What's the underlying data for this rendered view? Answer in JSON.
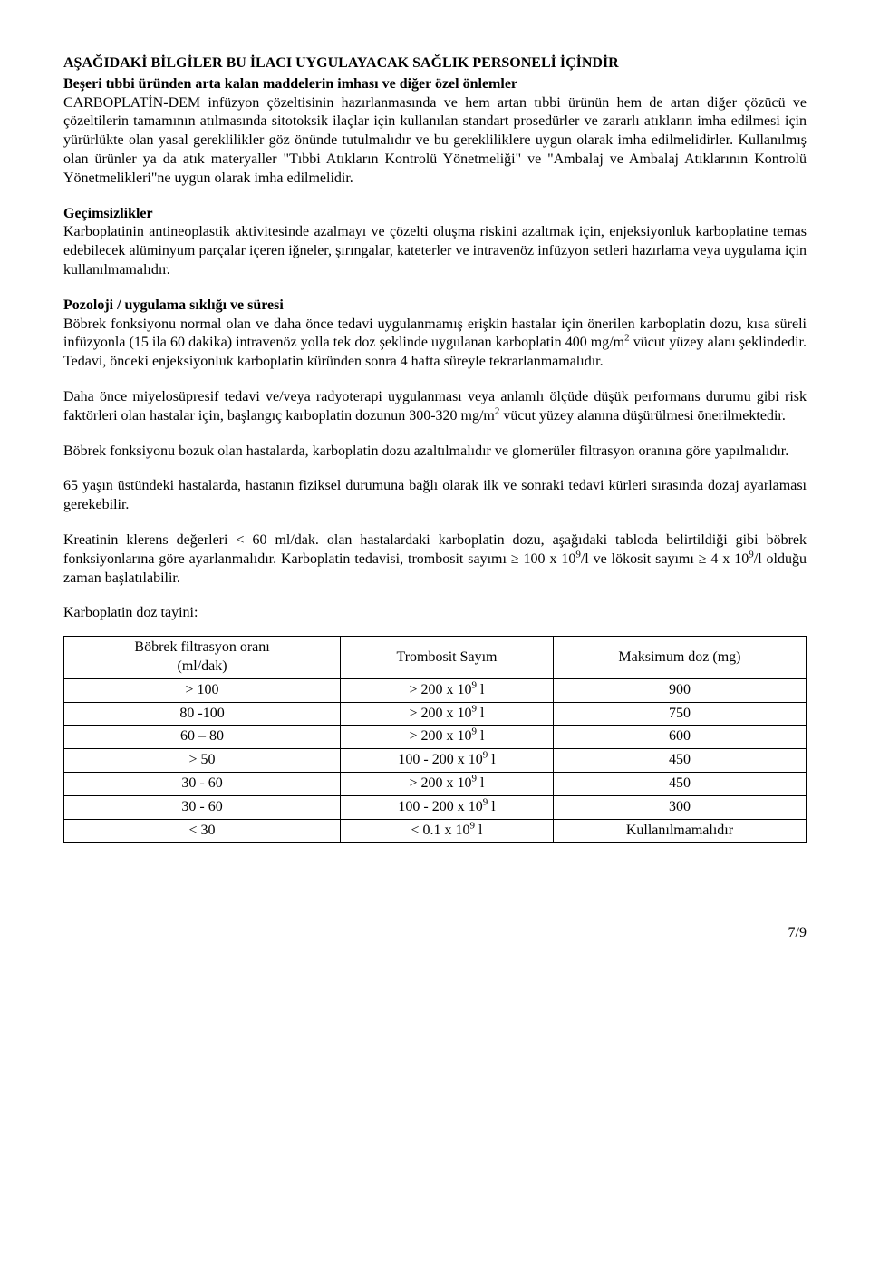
{
  "title": "AŞAĞIDAKİ BİLGİLER BU İLACI UYGULAYACAK SAĞLIK PERSONELİ İÇİNDİR",
  "intro": {
    "heading": "Beşeri tıbbi üründen arta kalan maddelerin imhası ve diğer özel önlemler",
    "body": "CARBOPLATİN-DEM infüzyon çözeltisinin hazırlanmasında ve hem artan tıbbi ürünün hem de artan diğer çözücü ve çözeltilerin tamamının atılmasında sitotoksik ilaçlar için kullanılan standart prosedürler ve zararlı atıkların imha edilmesi için yürürlükte olan yasal gereklilikler göz önünde tutulmalıdır ve bu gerekliliklere uygun olarak imha edilmelidirler. Kullanılmış olan ürünler ya da atık materyaller \"Tıbbi Atıkların Kontrolü Yönetmeliği\" ve \"Ambalaj ve Ambalaj Atıklarının Kontrolü Yönetmelikleri\"ne uygun olarak imha edilmelidir."
  },
  "gecimsizlikler": {
    "heading": "Geçimsizlikler",
    "body": "Karboplatinin antineoplastik aktivitesinde azalmayı ve çözelti oluşma riskini azaltmak için, enjeksiyonluk karboplatine temas edebilecek alüminyum parçalar içeren iğneler, şırıngalar, kateterler ve intravenöz infüzyon setleri hazırlama veya uygulama için kullanılmamalıdır."
  },
  "pozoloji": {
    "heading": "Pozoloji / uygulama sıklığı ve süresi",
    "p1_pre": "Böbrek fonksiyonu normal olan ve daha önce tedavi uygulanmamış erişkin hastalar için önerilen karboplatin dozu, kısa süreli infüzyonla (15 ila 60 dakika) intravenöz yolla tek doz şeklinde uygulanan karboplatin 400 mg/m",
    "p1_sup": "2",
    "p1_post": " vücut yüzey alanı şeklindedir. Tedavi, önceki enjeksiyonluk karboplatin küründen sonra 4 hafta süreyle tekrarlanmamalıdır.",
    "p2_pre": "Daha önce miyelosüpresif tedavi ve/veya radyoterapi uygulanması veya anlamlı ölçüde düşük performans durumu gibi risk faktörleri olan hastalar için, başlangıç karboplatin dozunun 300-320 mg/m",
    "p2_sup": "2",
    "p2_post": " vücut yüzey alanına düşürülmesi önerilmektedir.",
    "p3": "Böbrek fonksiyonu bozuk olan hastalarda, karboplatin dozu azaltılmalıdır ve glomerüler filtrasyon oranına göre yapılmalıdır.",
    "p4": "65 yaşın üstündeki hastalarda, hastanın fiziksel durumuna bağlı olarak ilk ve sonraki tedavi kürleri sırasında dozaj ayarlaması gerekebilir.",
    "p5_pre": "Kreatinin klerens değerleri < 60 ml/dak. olan hastalardaki karboplatin dozu, aşağıdaki tabloda belirtildiği gibi böbrek fonksiyonlarına göre ayarlanmalıdır. Karboplatin tedavisi, trombosit sayımı ≥ 100 x 10",
    "p5_sup1": "9",
    "p5_mid": "/l ve lökosit sayımı ≥ 4 x 10",
    "p5_sup2": "9",
    "p5_post": "/l olduğu zaman başlatılabilir."
  },
  "doz_label": "Karboplatin doz tayini:",
  "table": {
    "headers": {
      "c1a": "Böbrek filtrasyon oranı",
      "c1b": "(ml/dak)",
      "c2": "Trombosit Sayım",
      "c3": "Maksimum doz (mg)"
    },
    "rows": [
      {
        "c1": "> 100",
        "c2_pre": "> 200 x 10",
        "c2_sup": "9",
        "c2_post": " l",
        "c3": "900"
      },
      {
        "c1": "80 -100",
        "c2_pre": "> 200 x 10",
        "c2_sup": "9",
        "c2_post": " l",
        "c3": "750"
      },
      {
        "c1": "60 – 80",
        "c2_pre": "> 200 x 10",
        "c2_sup": "9",
        "c2_post": " l",
        "c3": "600"
      },
      {
        "c1": "> 50",
        "c2_pre": "100 - 200 x 10",
        "c2_sup": "9",
        "c2_post": " l",
        "c3": "450"
      },
      {
        "c1": "30 - 60",
        "c2_pre": "> 200 x 10",
        "c2_sup": "9",
        "c2_post": " l",
        "c3": "450"
      },
      {
        "c1": "30 - 60",
        "c2_pre": "100 - 200 x 10",
        "c2_sup": "9",
        "c2_post": " l",
        "c3": "300"
      },
      {
        "c1": "< 30",
        "c2_pre": "< 0.1 x 10",
        "c2_sup": "9",
        "c2_post": " l",
        "c3": "Kullanılmamalıdır"
      }
    ]
  },
  "footer": "7/9"
}
